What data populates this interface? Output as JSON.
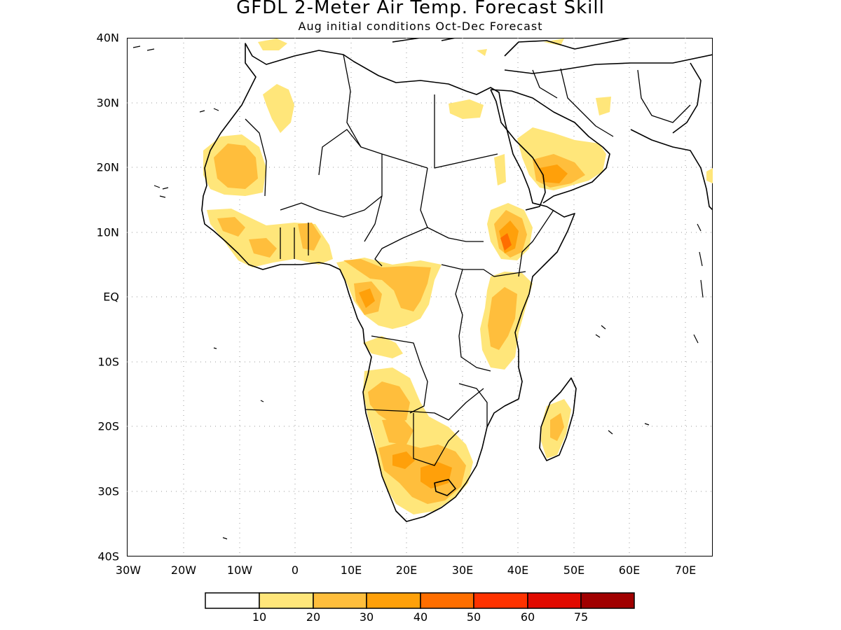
{
  "title": "GFDL 2-Meter Air Temp. Forecast Skill",
  "subtitle": "Aug initial conditions   Oct-Dec Forecast",
  "map": {
    "region": "Africa",
    "lat_labels": [
      "40N",
      "30N",
      "20N",
      "10N",
      "EQ",
      "10S",
      "20S",
      "30S",
      "40S"
    ],
    "lon_labels": [
      "30W",
      "20W",
      "10W",
      "0",
      "10E",
      "20E",
      "30E",
      "40E",
      "50E",
      "60E",
      "70E"
    ],
    "grid": "dotted",
    "fill_colors": {
      "c10": "#ffe67a",
      "c20": "#ffbe3c",
      "c30": "#ffa00a",
      "c40": "#ff6e00",
      "c50": "#ff3200"
    }
  },
  "colorbar": {
    "labels": [
      "10",
      "20",
      "30",
      "40",
      "50",
      "60",
      "75"
    ],
    "colors": [
      "#ffffff",
      "#ffe67a",
      "#ffbe3c",
      "#ffa00a",
      "#ff6e00",
      "#ff3200",
      "#e10a00",
      "#a00000"
    ]
  }
}
